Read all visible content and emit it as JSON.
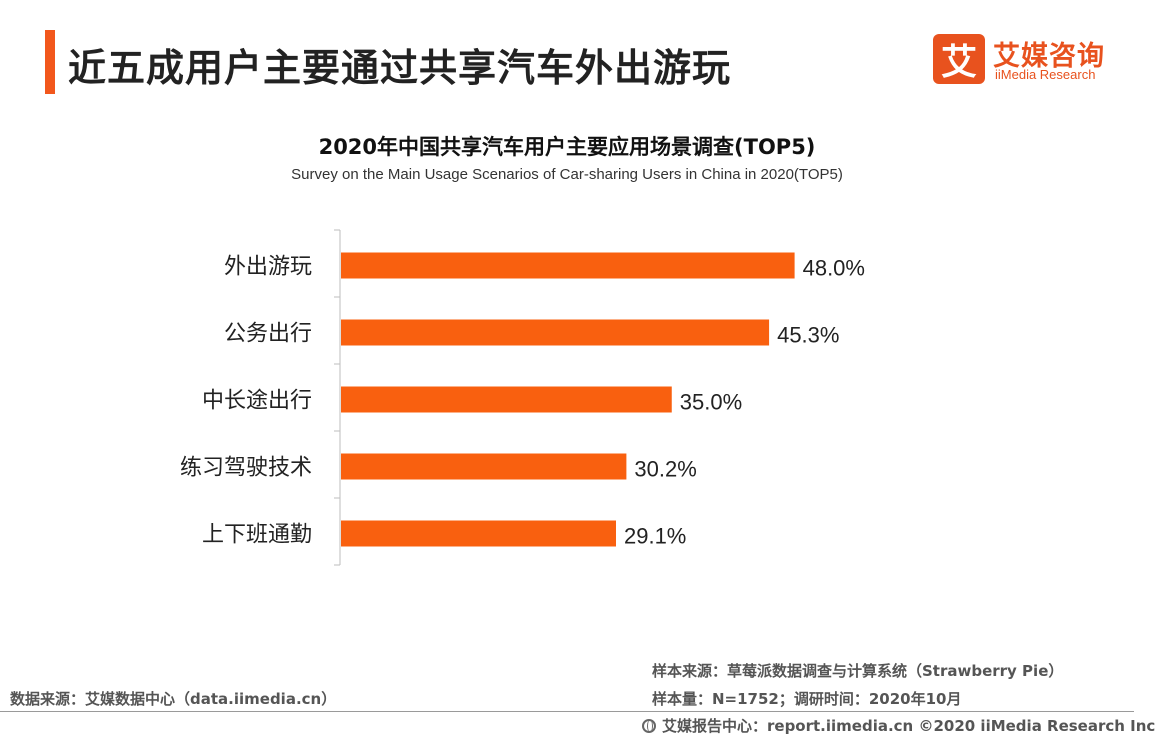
{
  "header": {
    "title": "近五成用户主要通过共享汽车外出游玩",
    "accent_color": "#f2571c"
  },
  "logo": {
    "mark": "艾",
    "cn": "艾媒咨询",
    "en": "iiMedia Research",
    "color": "#e8521e"
  },
  "chart_data": {
    "type": "bar",
    "orientation": "horizontal",
    "title": "2020年中国共享汽车用户主要应用场景调查(TOP5)",
    "subtitle": "Survey on the Main Usage Scenarios of Car-sharing Users in China in 2020(TOP5)",
    "categories": [
      "外出游玩",
      "公务出行",
      "中长途出行",
      "练习驾驶技术",
      "上下班通勤"
    ],
    "values": [
      48.0,
      45.3,
      35.0,
      30.2,
      29.1
    ],
    "value_labels": [
      "48.0%",
      "45.3%",
      "35.0%",
      "30.2%",
      "29.1%"
    ],
    "bar_color": "#f9600f",
    "grid": false
  },
  "footer": {
    "sample_source": "样本来源：草莓派数据调查与计算系统（Strawberry Pie）",
    "sample_size": "样本量：N=1752；调研时间：2020年10月",
    "data_source": "数据来源：艾媒数据中心（data.iimedia.cn）",
    "report": "艾媒报告中心：report.iimedia.cn ©2020 iiMedia Research Inc",
    "icon": "globe-icon"
  }
}
